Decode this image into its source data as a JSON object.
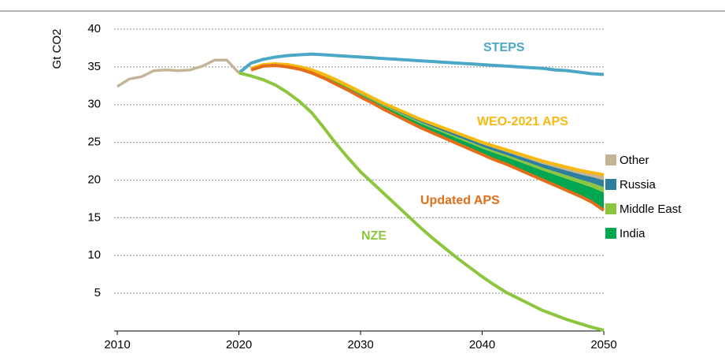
{
  "chart_data": {
    "type": "line",
    "y_label": "Gt CO2",
    "x": [
      2010,
      2011,
      2012,
      2013,
      2014,
      2015,
      2016,
      2017,
      2018,
      2019,
      2020,
      2021,
      2022,
      2023,
      2024,
      2025,
      2026,
      2027,
      2028,
      2029,
      2030,
      2031,
      2032,
      2033,
      2034,
      2035,
      2036,
      2037,
      2038,
      2039,
      2040,
      2041,
      2042,
      2043,
      2044,
      2045,
      2046,
      2047,
      2048,
      2049,
      2050
    ],
    "xlim": [
      2010,
      2050
    ],
    "xticks": [
      2010,
      2020,
      2030,
      2040,
      2050
    ],
    "ylim": [
      0,
      40
    ],
    "yticks": [
      5,
      10,
      15,
      20,
      25,
      30,
      35,
      40
    ],
    "grid": true,
    "history": {
      "color": "#c4b596",
      "values": [
        32.4,
        33.4,
        33.7,
        34.5,
        34.6,
        34.5,
        34.6,
        35.1,
        35.9,
        35.9,
        34.2,
        null,
        null,
        null,
        null,
        null,
        null,
        null,
        null,
        null,
        null,
        null,
        null,
        null,
        null,
        null,
        null,
        null,
        null,
        null,
        null,
        null,
        null,
        null,
        null,
        null,
        null,
        null,
        null,
        null,
        null
      ]
    },
    "series": [
      {
        "name": "STEPS",
        "color": "#4aa8c6",
        "values": [
          null,
          null,
          null,
          null,
          null,
          null,
          null,
          null,
          null,
          null,
          34.2,
          35.5,
          36.0,
          36.3,
          36.5,
          36.6,
          36.7,
          36.6,
          36.5,
          36.4,
          36.3,
          36.2,
          36.1,
          36.0,
          35.9,
          35.8,
          35.7,
          35.6,
          35.5,
          35.4,
          35.3,
          35.2,
          35.1,
          35.0,
          34.9,
          34.8,
          34.6,
          34.5,
          34.3,
          34.1,
          34.0
        ]
      },
      {
        "name": "WEO-2021 APS",
        "color": "#f7b90f",
        "values": [
          null,
          null,
          null,
          null,
          null,
          null,
          null,
          null,
          null,
          null,
          null,
          34.8,
          35.3,
          35.4,
          35.3,
          35.0,
          34.6,
          34.0,
          33.3,
          32.5,
          31.7,
          30.9,
          30.1,
          29.4,
          28.7,
          28.0,
          27.4,
          26.8,
          26.2,
          25.6,
          25.0,
          24.5,
          24.0,
          23.5,
          23.0,
          22.5,
          22.1,
          21.7,
          21.3,
          21.0,
          20.7
        ]
      },
      {
        "name": "Updated APS",
        "color": "#e26e1a",
        "values": [
          null,
          null,
          null,
          null,
          null,
          null,
          null,
          null,
          null,
          null,
          null,
          34.6,
          35.1,
          35.2,
          35.0,
          34.7,
          34.2,
          33.5,
          32.7,
          31.9,
          31.0,
          30.2,
          29.3,
          28.5,
          27.7,
          26.9,
          26.2,
          25.5,
          24.8,
          24.1,
          23.4,
          22.7,
          22.1,
          21.4,
          20.7,
          20.0,
          19.3,
          18.6,
          17.9,
          17.1,
          16.0
        ]
      },
      {
        "name": "NZE",
        "color": "#8cc63f",
        "values": [
          null,
          null,
          null,
          null,
          null,
          null,
          null,
          null,
          null,
          null,
          34.2,
          33.8,
          33.3,
          32.6,
          31.6,
          30.4,
          28.9,
          26.9,
          24.8,
          22.9,
          21.1,
          19.6,
          18.1,
          16.6,
          15.1,
          13.6,
          12.2,
          10.9,
          9.6,
          8.4,
          7.2,
          6.1,
          5.1,
          4.3,
          3.5,
          2.7,
          2.1,
          1.5,
          1.0,
          0.5,
          0.1
        ]
      }
    ],
    "areas": [
      {
        "name": "India",
        "color": "#00a650",
        "values": [
          null,
          null,
          null,
          null,
          null,
          null,
          null,
          null,
          null,
          null,
          null,
          0.1,
          0.1,
          0.1,
          0.15,
          0.15,
          0.2,
          0.25,
          0.3,
          0.3,
          0.35,
          0.35,
          0.4,
          0.45,
          0.5,
          0.55,
          0.6,
          0.65,
          0.7,
          0.75,
          0.8,
          0.9,
          0.95,
          1.05,
          1.15,
          1.25,
          1.4,
          1.55,
          1.7,
          1.95,
          2.35
        ]
      },
      {
        "name": "Middle East",
        "color": "#8cc63f",
        "values": [
          null,
          null,
          null,
          null,
          null,
          null,
          null,
          null,
          null,
          null,
          null,
          0.03,
          0.03,
          0.03,
          0.05,
          0.05,
          0.06,
          0.08,
          0.09,
          0.09,
          0.1,
          0.1,
          0.12,
          0.14,
          0.15,
          0.17,
          0.18,
          0.2,
          0.21,
          0.23,
          0.24,
          0.27,
          0.29,
          0.32,
          0.35,
          0.38,
          0.42,
          0.47,
          0.51,
          0.59,
          0.71
        ]
      },
      {
        "name": "Russia",
        "color": "#2e7f9e",
        "values": [
          null,
          null,
          null,
          null,
          null,
          null,
          null,
          null,
          null,
          null,
          null,
          0.04,
          0.04,
          0.04,
          0.06,
          0.06,
          0.08,
          0.1,
          0.12,
          0.12,
          0.14,
          0.14,
          0.16,
          0.18,
          0.2,
          0.22,
          0.24,
          0.26,
          0.28,
          0.3,
          0.32,
          0.36,
          0.38,
          0.42,
          0.46,
          0.5,
          0.56,
          0.62,
          0.68,
          0.78,
          0.94
        ]
      },
      {
        "name": "Other",
        "color": "#c4b596",
        "values": [
          null,
          null,
          null,
          null,
          null,
          null,
          null,
          null,
          null,
          null,
          null,
          0.03,
          0.03,
          0.03,
          0.04,
          0.04,
          0.06,
          0.07,
          0.09,
          0.09,
          0.11,
          0.11,
          0.12,
          0.13,
          0.15,
          0.16,
          0.18,
          0.19,
          0.21,
          0.22,
          0.24,
          0.27,
          0.28,
          0.31,
          0.34,
          0.37,
          0.42,
          0.46,
          0.51,
          0.58,
          0.7
        ]
      }
    ]
  }
}
